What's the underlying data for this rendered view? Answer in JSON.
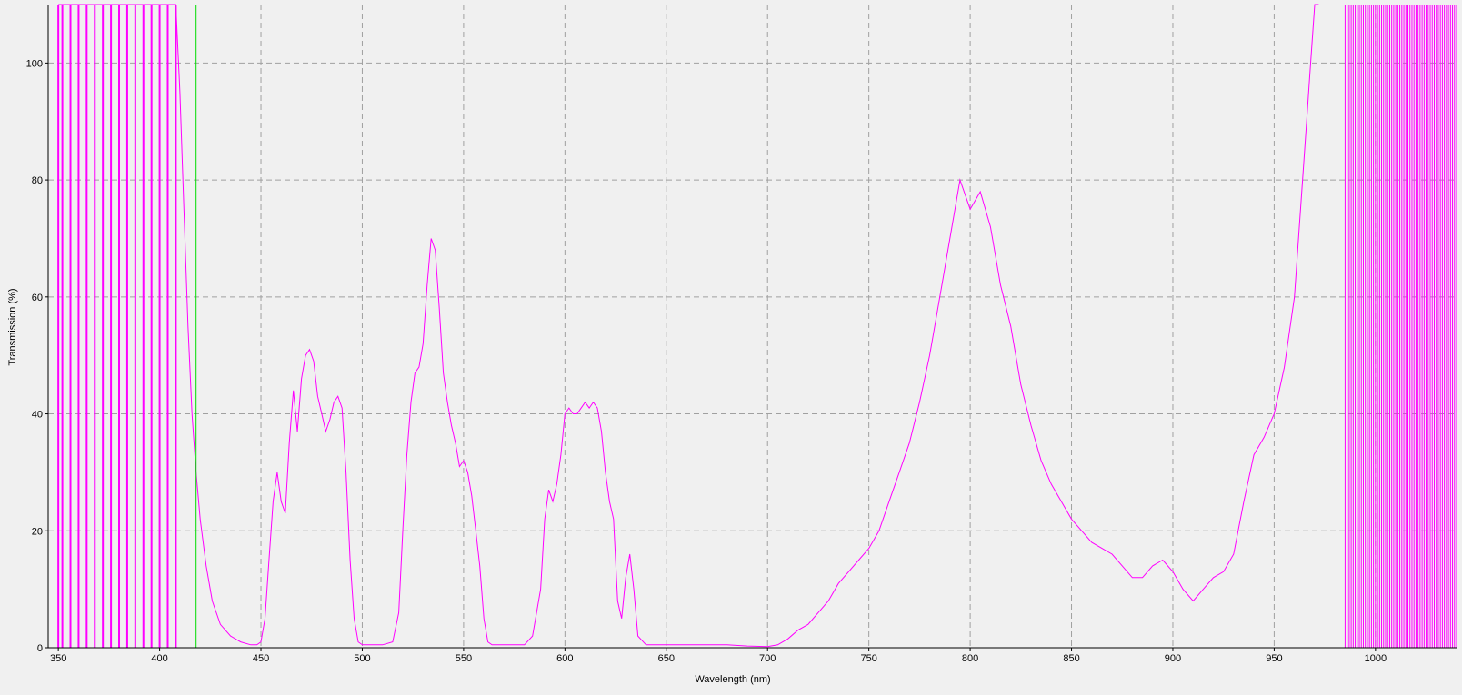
{
  "chart_data": {
    "type": "line",
    "title": "",
    "xlabel": "Wavelength (nm)",
    "ylabel": "Transmission (%)",
    "xlim": [
      345,
      1040
    ],
    "ylim": [
      0,
      110
    ],
    "x_ticks": [
      350,
      400,
      450,
      500,
      550,
      600,
      650,
      700,
      750,
      800,
      850,
      900,
      950,
      1000
    ],
    "y_ticks": [
      0,
      20,
      40,
      60,
      80,
      100
    ],
    "grid": true,
    "legend": "none",
    "colors": {
      "series": "#ff00ff",
      "marker": "#00dd00",
      "grid": "#a0a0a0",
      "background": "#f0f0f0",
      "axis": "#000000"
    },
    "marker_line_x": 418,
    "series": [
      {
        "x": [
          350,
          352,
          356,
          360,
          364,
          368,
          372,
          376,
          380,
          384,
          388,
          392,
          396,
          400,
          404,
          408,
          410,
          412,
          414,
          416,
          418,
          420,
          423,
          426,
          430,
          435,
          440,
          445,
          448,
          450,
          452,
          454,
          456,
          458,
          460,
          462,
          464,
          466,
          468,
          470,
          472,
          474,
          476,
          478,
          480,
          482,
          484,
          486,
          488,
          490,
          492,
          494,
          496,
          498,
          500,
          505,
          510,
          515,
          518,
          520,
          522,
          524,
          526,
          528,
          530,
          532,
          534,
          536,
          538,
          540,
          542,
          544,
          546,
          548,
          550,
          552,
          554,
          556,
          558,
          560,
          562,
          564,
          566,
          570,
          575,
          580,
          584,
          588,
          590,
          592,
          594,
          596,
          598,
          600,
          602,
          604,
          606,
          608,
          610,
          612,
          614,
          616,
          618,
          620,
          622,
          624,
          626,
          628,
          630,
          632,
          634,
          636,
          640,
          650,
          660,
          670,
          680,
          690,
          700,
          705,
          710,
          715,
          720,
          725,
          730,
          735,
          740,
          745,
          750,
          755,
          760,
          765,
          770,
          775,
          780,
          785,
          790,
          795,
          800,
          805,
          810,
          815,
          820,
          825,
          830,
          835,
          840,
          845,
          850,
          855,
          860,
          865,
          870,
          875,
          880,
          885,
          890,
          895,
          900,
          905,
          910,
          915,
          920,
          925,
          930,
          935,
          940,
          945,
          950,
          955,
          960,
          963,
          966,
          968,
          970,
          972
        ],
        "y": [
          110,
          110,
          110,
          110,
          110,
          110,
          110,
          110,
          110,
          110,
          110,
          110,
          110,
          110,
          110,
          110,
          95,
          75,
          55,
          40,
          30,
          22,
          14,
          8,
          4,
          2,
          1,
          0.5,
          0.5,
          1,
          5,
          15,
          25,
          30,
          25,
          23,
          35,
          44,
          37,
          46,
          50,
          51,
          49,
          43,
          40,
          37,
          39,
          42,
          43,
          41,
          30,
          15,
          5,
          1,
          0.5,
          0.5,
          0.5,
          1,
          6,
          20,
          33,
          42,
          47,
          48,
          52,
          62,
          70,
          68,
          58,
          47,
          42,
          38,
          35,
          31,
          32,
          30,
          26,
          20,
          14,
          5,
          1,
          0.5,
          0.5,
          0.5,
          0.5,
          0.5,
          2,
          10,
          22,
          27,
          25,
          28,
          33,
          40,
          41,
          40,
          40,
          41,
          42,
          41,
          42,
          41,
          37,
          30,
          25,
          22,
          8,
          5,
          12,
          16,
          10,
          2,
          0.5,
          0.5,
          0.5,
          0.5,
          0.5,
          0.3,
          0.2,
          0.5,
          1.5,
          3,
          4,
          6,
          8,
          11,
          13,
          15,
          17,
          20,
          25,
          30,
          35,
          42,
          50,
          60,
          70,
          80,
          75,
          78,
          72,
          62,
          55,
          45,
          38,
          32,
          28,
          25,
          22,
          20,
          18,
          17,
          16,
          14,
          12,
          12,
          14,
          15,
          13,
          10,
          8,
          10,
          12,
          13,
          16,
          25,
          33,
          36,
          40,
          48,
          60,
          75,
          90,
          100,
          110,
          110
        ]
      },
      {
        "x": [
          985,
          990,
          995,
          1000,
          1005,
          1010,
          1015,
          1020,
          1025,
          1030,
          1035,
          1040
        ],
        "y": [
          110,
          110,
          110,
          110,
          110,
          110,
          110,
          110,
          110,
          110,
          110,
          110
        ]
      }
    ]
  }
}
